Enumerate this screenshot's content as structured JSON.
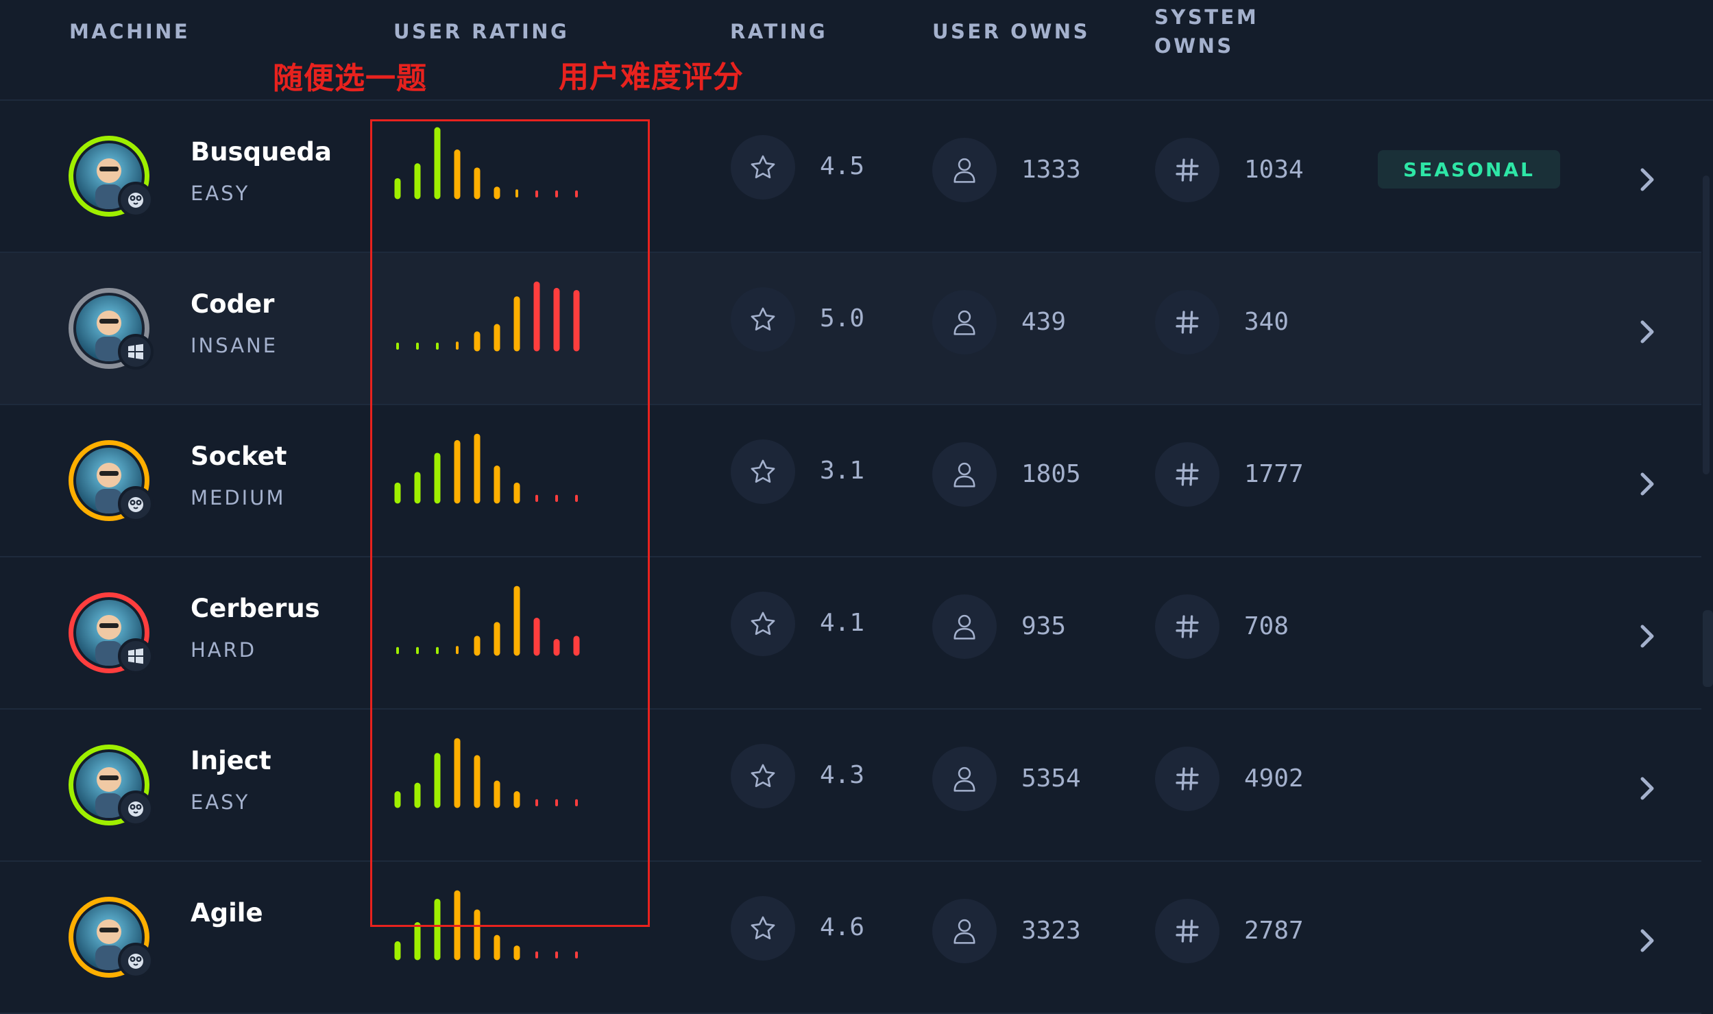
{
  "header": {
    "machine": "MACHINE",
    "user_rating": "USER RATING",
    "rating": "RATING",
    "user_owns": "USER OWNS",
    "system_owns_line1": "SYSTEM",
    "system_owns_line2": "OWNS"
  },
  "annotations": {
    "left": "随便选一题",
    "right": "用户难度评分"
  },
  "bar_colors": [
    "#9fef00",
    "#9fef00",
    "#9fef00",
    "#ffaf00",
    "#ffaf00",
    "#ffaf00",
    "#ffaf00",
    "#ff3e3e",
    "#ff3e3e",
    "#ff3e3e"
  ],
  "machines": [
    {
      "name": "Busqueda",
      "difficulty": "EASY",
      "ring_color": "#9fef00",
      "os": "linux-icon",
      "rating": "4.5",
      "user_owns": "1333",
      "system_owns": "1034",
      "tag": "SEASONAL",
      "user_rating_bars": [
        0.14,
        0.28,
        0.62,
        0.41,
        0.24,
        0.06,
        0.05,
        0.04,
        0.04,
        0.04
      ]
    },
    {
      "name": "Coder",
      "difficulty": "INSANE",
      "ring_color": "#8a8f99",
      "os": "windows-icon",
      "rating": "5.0",
      "user_owns": "439",
      "system_owns": "340",
      "tag": "",
      "user_rating_bars": [
        0.04,
        0.04,
        0.04,
        0.05,
        0.13,
        0.2,
        0.46,
        0.6,
        0.54,
        0.52
      ]
    },
    {
      "name": "Socket",
      "difficulty": "MEDIUM",
      "ring_color": "#ffaf00",
      "os": "linux-icon",
      "rating": "3.1",
      "user_owns": "1805",
      "system_owns": "1777",
      "tag": "",
      "user_rating_bars": [
        0.14,
        0.24,
        0.42,
        0.54,
        0.6,
        0.3,
        0.14,
        0.04,
        0.04,
        0.04
      ]
    },
    {
      "name": "Cerberus",
      "difficulty": "HARD",
      "ring_color": "#ff3e3e",
      "os": "windows-icon",
      "rating": "4.1",
      "user_owns": "935",
      "system_owns": "708",
      "tag": "",
      "user_rating_bars": [
        0.04,
        0.04,
        0.04,
        0.05,
        0.13,
        0.26,
        0.6,
        0.3,
        0.1,
        0.13
      ]
    },
    {
      "name": "Inject",
      "difficulty": "EASY",
      "ring_color": "#9fef00",
      "os": "linux-icon",
      "rating": "4.3",
      "user_owns": "5354",
      "system_owns": "4902",
      "tag": "",
      "user_rating_bars": [
        0.1,
        0.18,
        0.46,
        0.6,
        0.44,
        0.2,
        0.1,
        0.04,
        0.04,
        0.04
      ]
    },
    {
      "name": "Agile",
      "difficulty": "",
      "ring_color": "#ffaf00",
      "os": "linux-icon",
      "rating": "4.6",
      "user_owns": "3323",
      "system_owns": "2787",
      "tag": "",
      "user_rating_bars": [
        0.12,
        0.3,
        0.52,
        0.6,
        0.42,
        0.18,
        0.08,
        0.04,
        0.04,
        0.04
      ]
    }
  ]
}
